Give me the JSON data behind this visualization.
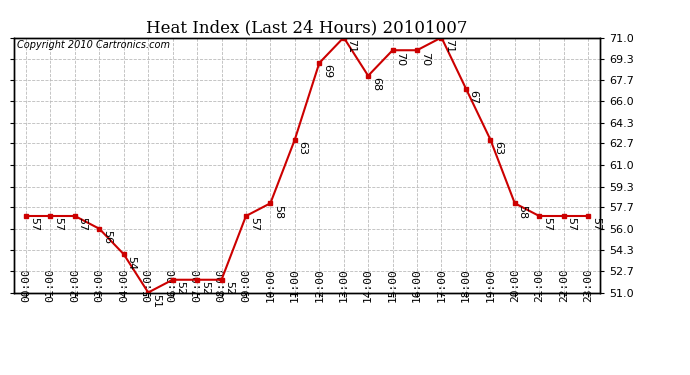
{
  "title": "Heat Index (Last 24 Hours) 20101007",
  "copyright": "Copyright 2010 Cartronics.com",
  "hours": [
    "00:00",
    "01:00",
    "02:00",
    "03:00",
    "04:00",
    "05:00",
    "06:00",
    "07:00",
    "08:00",
    "09:00",
    "10:00",
    "11:00",
    "12:00",
    "13:00",
    "14:00",
    "15:00",
    "16:00",
    "17:00",
    "18:00",
    "19:00",
    "20:00",
    "21:00",
    "22:00",
    "23:00"
  ],
  "values": [
    57,
    57,
    57,
    56,
    54,
    51,
    52,
    52,
    52,
    57,
    58,
    63,
    69,
    71,
    68,
    70,
    70,
    71,
    67,
    63,
    58,
    57,
    57,
    57
  ],
  "ylim_min": 51.0,
  "ylim_max": 71.0,
  "yticks": [
    51.0,
    52.7,
    54.3,
    56.0,
    57.7,
    59.3,
    61.0,
    62.7,
    64.3,
    66.0,
    67.7,
    69.3,
    71.0
  ],
  "line_color": "#cc0000",
  "marker_color": "#cc0000",
  "bg_color": "#ffffff",
  "grid_color": "#bbbbbb",
  "title_fontsize": 12,
  "tick_fontsize": 8,
  "annotation_fontsize": 8,
  "copyright_fontsize": 7
}
